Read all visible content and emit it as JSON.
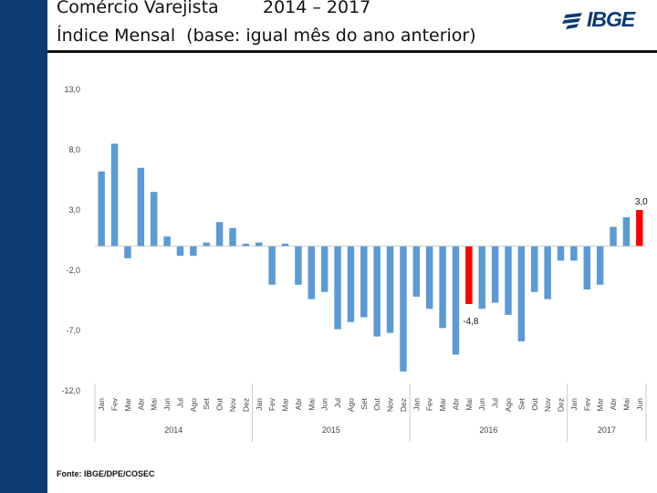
{
  "header": {
    "title_line1": "Comércio Varejista        2014 – 2017",
    "title_line2": "Índice Mensal  (base: igual mês do ano anterior)",
    "logo_text": "IBGE"
  },
  "footer": {
    "source": "Fonte: IBGE/DPE/COSEC"
  },
  "colors": {
    "sidebar": "#0d3b73",
    "bar": "#5b9bd5",
    "highlight": "#ff0000"
  },
  "chart_data": {
    "type": "bar",
    "title": "",
    "xlabel": "",
    "ylabel": "",
    "ylim": [
      -12,
      13
    ],
    "yticks": [
      "13,0",
      "8,0",
      "3,0",
      "-2,0",
      "-7,0",
      "-12,0"
    ],
    "ytick_values": [
      13,
      8,
      3,
      -2,
      -7,
      -12
    ],
    "grid": false,
    "categories": [
      "Jan",
      "Fev",
      "Mar",
      "Abr",
      "Mai",
      "Jun",
      "Jul",
      "Ago",
      "Set",
      "Out",
      "Nov",
      "Dez",
      "Jan",
      "Fev",
      "Mar",
      "Abr",
      "Mai",
      "Jun",
      "Jul",
      "Ago",
      "Set",
      "Out",
      "Nov",
      "Dez",
      "Jan",
      "Fev",
      "Mar",
      "Abr",
      "Mai",
      "Jun",
      "Jul",
      "Ago",
      "Set",
      "Out",
      "Nov",
      "Dez",
      "Jan",
      "Fev",
      "Mar",
      "Abr",
      "Mai",
      "Jun"
    ],
    "values": [
      6.2,
      8.5,
      -1.0,
      6.5,
      4.5,
      0.8,
      -0.8,
      -0.8,
      0.3,
      2.0,
      1.5,
      0.2,
      0.3,
      -3.2,
      0.2,
      -3.2,
      -4.4,
      -3.8,
      -6.9,
      -6.3,
      -5.9,
      -7.5,
      -7.2,
      -10.4,
      -4.2,
      -5.2,
      -6.8,
      -9.0,
      -4.8,
      -5.2,
      -4.7,
      -5.7,
      -7.9,
      -3.8,
      -4.4,
      -1.2,
      -1.2,
      -3.6,
      -3.2,
      1.6,
      2.4,
      3.0
    ],
    "highlight": [
      {
        "index": 28,
        "label": "-4,8"
      },
      {
        "index": 41,
        "label": "3,0"
      }
    ],
    "groups": [
      {
        "label": "2014",
        "start": 0,
        "end": 11
      },
      {
        "label": "2015",
        "start": 12,
        "end": 23
      },
      {
        "label": "2016",
        "start": 24,
        "end": 35
      },
      {
        "label": "2017",
        "start": 36,
        "end": 41
      }
    ]
  }
}
